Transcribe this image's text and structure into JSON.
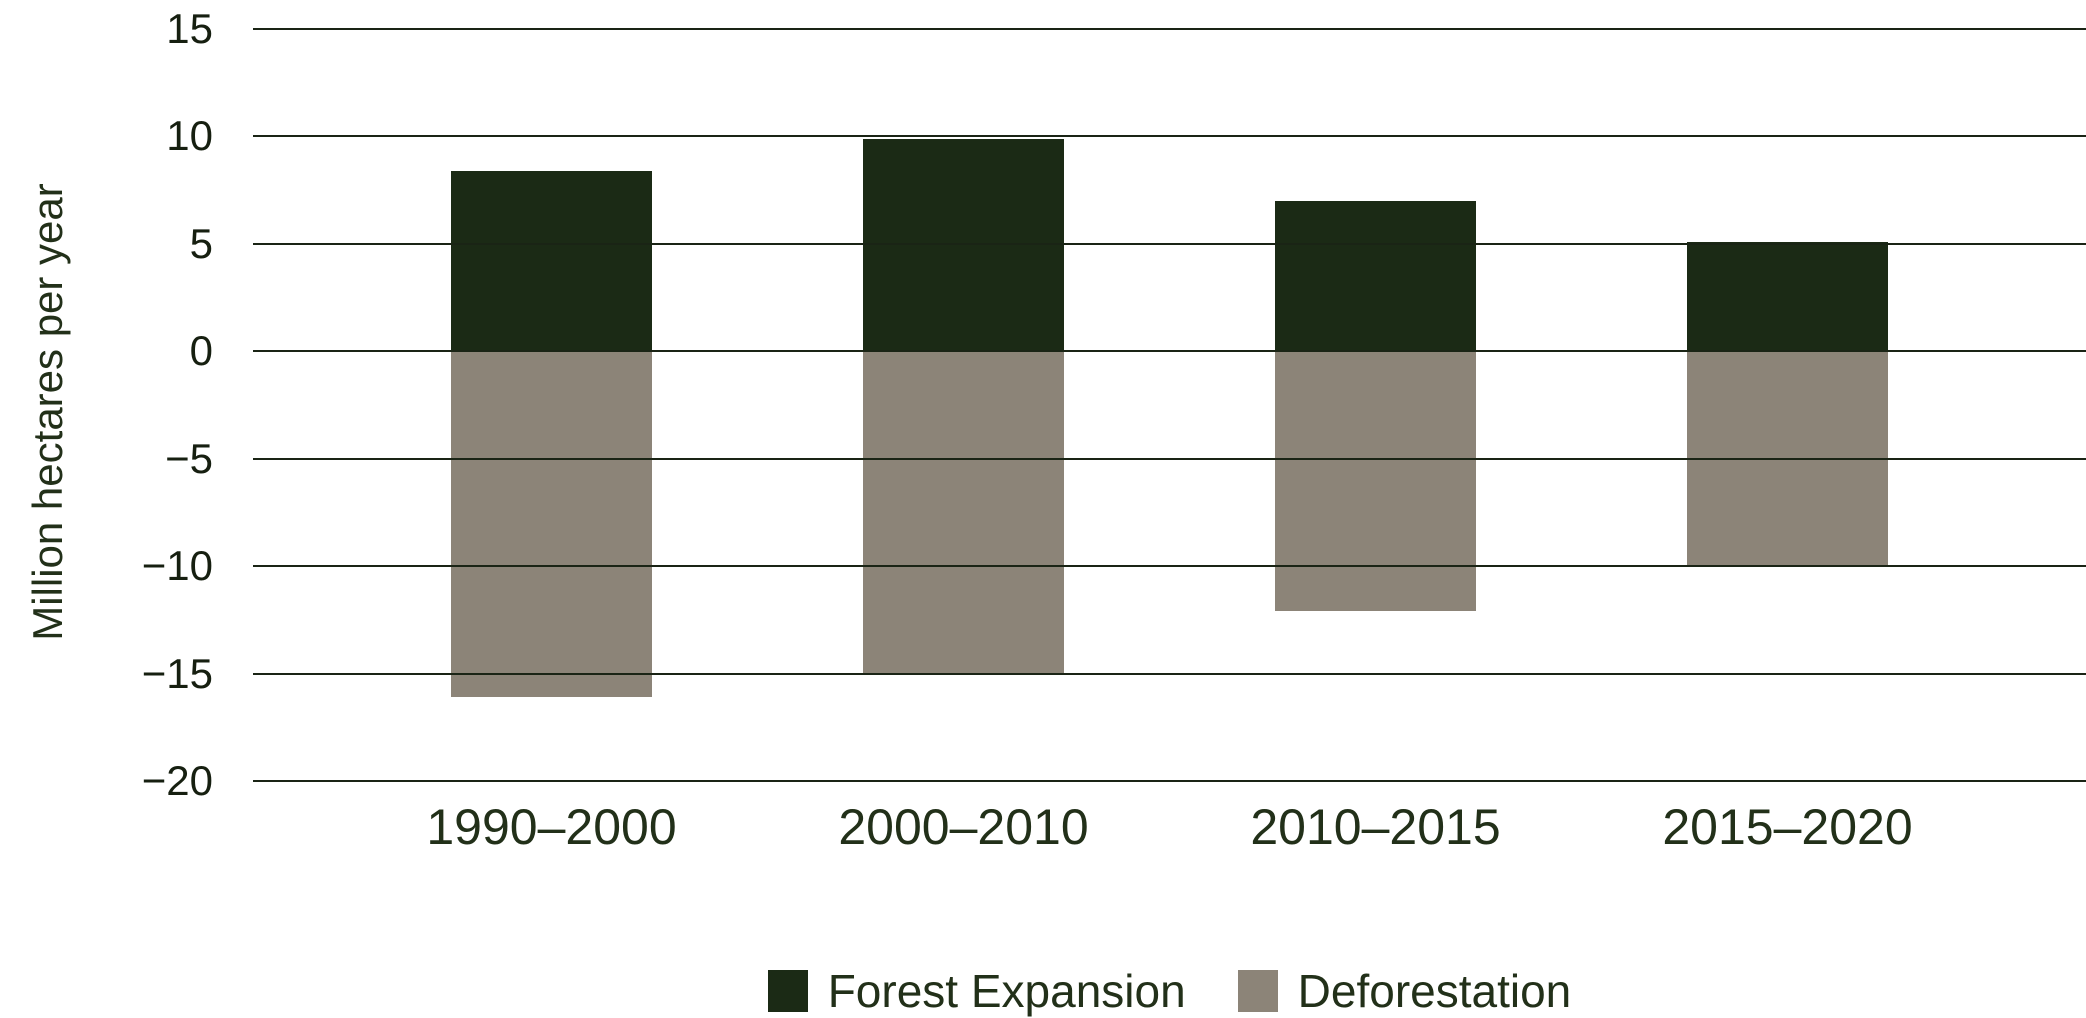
{
  "chart_data": {
    "type": "bar",
    "subtype": "diverging-stacked-columns",
    "title": "",
    "xlabel": "",
    "ylabel": "Million hectares per year",
    "categories": [
      "1990–2000",
      "2000–2010",
      "2010–2015",
      "2015–2020"
    ],
    "series": [
      {
        "name": "Forest Expansion",
        "color": "#1b2a15",
        "values": [
          8.4,
          9.9,
          7.0,
          5.1
        ]
      },
      {
        "name": "Deforestation",
        "color": "#8c8478",
        "values": [
          -16.1,
          -15.0,
          -12.1,
          -10.0
        ]
      }
    ],
    "ylim": [
      -20,
      15
    ],
    "yticks": [
      15,
      10,
      5,
      0,
      -5,
      -10,
      -15,
      -20
    ],
    "ytick_labels": [
      "15",
      "10",
      "5",
      "0",
      "−5",
      "−10",
      "−15",
      "−20"
    ],
    "grid": "horizontal",
    "legend_position": "bottom-center"
  },
  "colors": {
    "background": "#ffffff",
    "gridline": "#1a2415",
    "tick_text": "#161f10",
    "axis_text": "#223019"
  }
}
